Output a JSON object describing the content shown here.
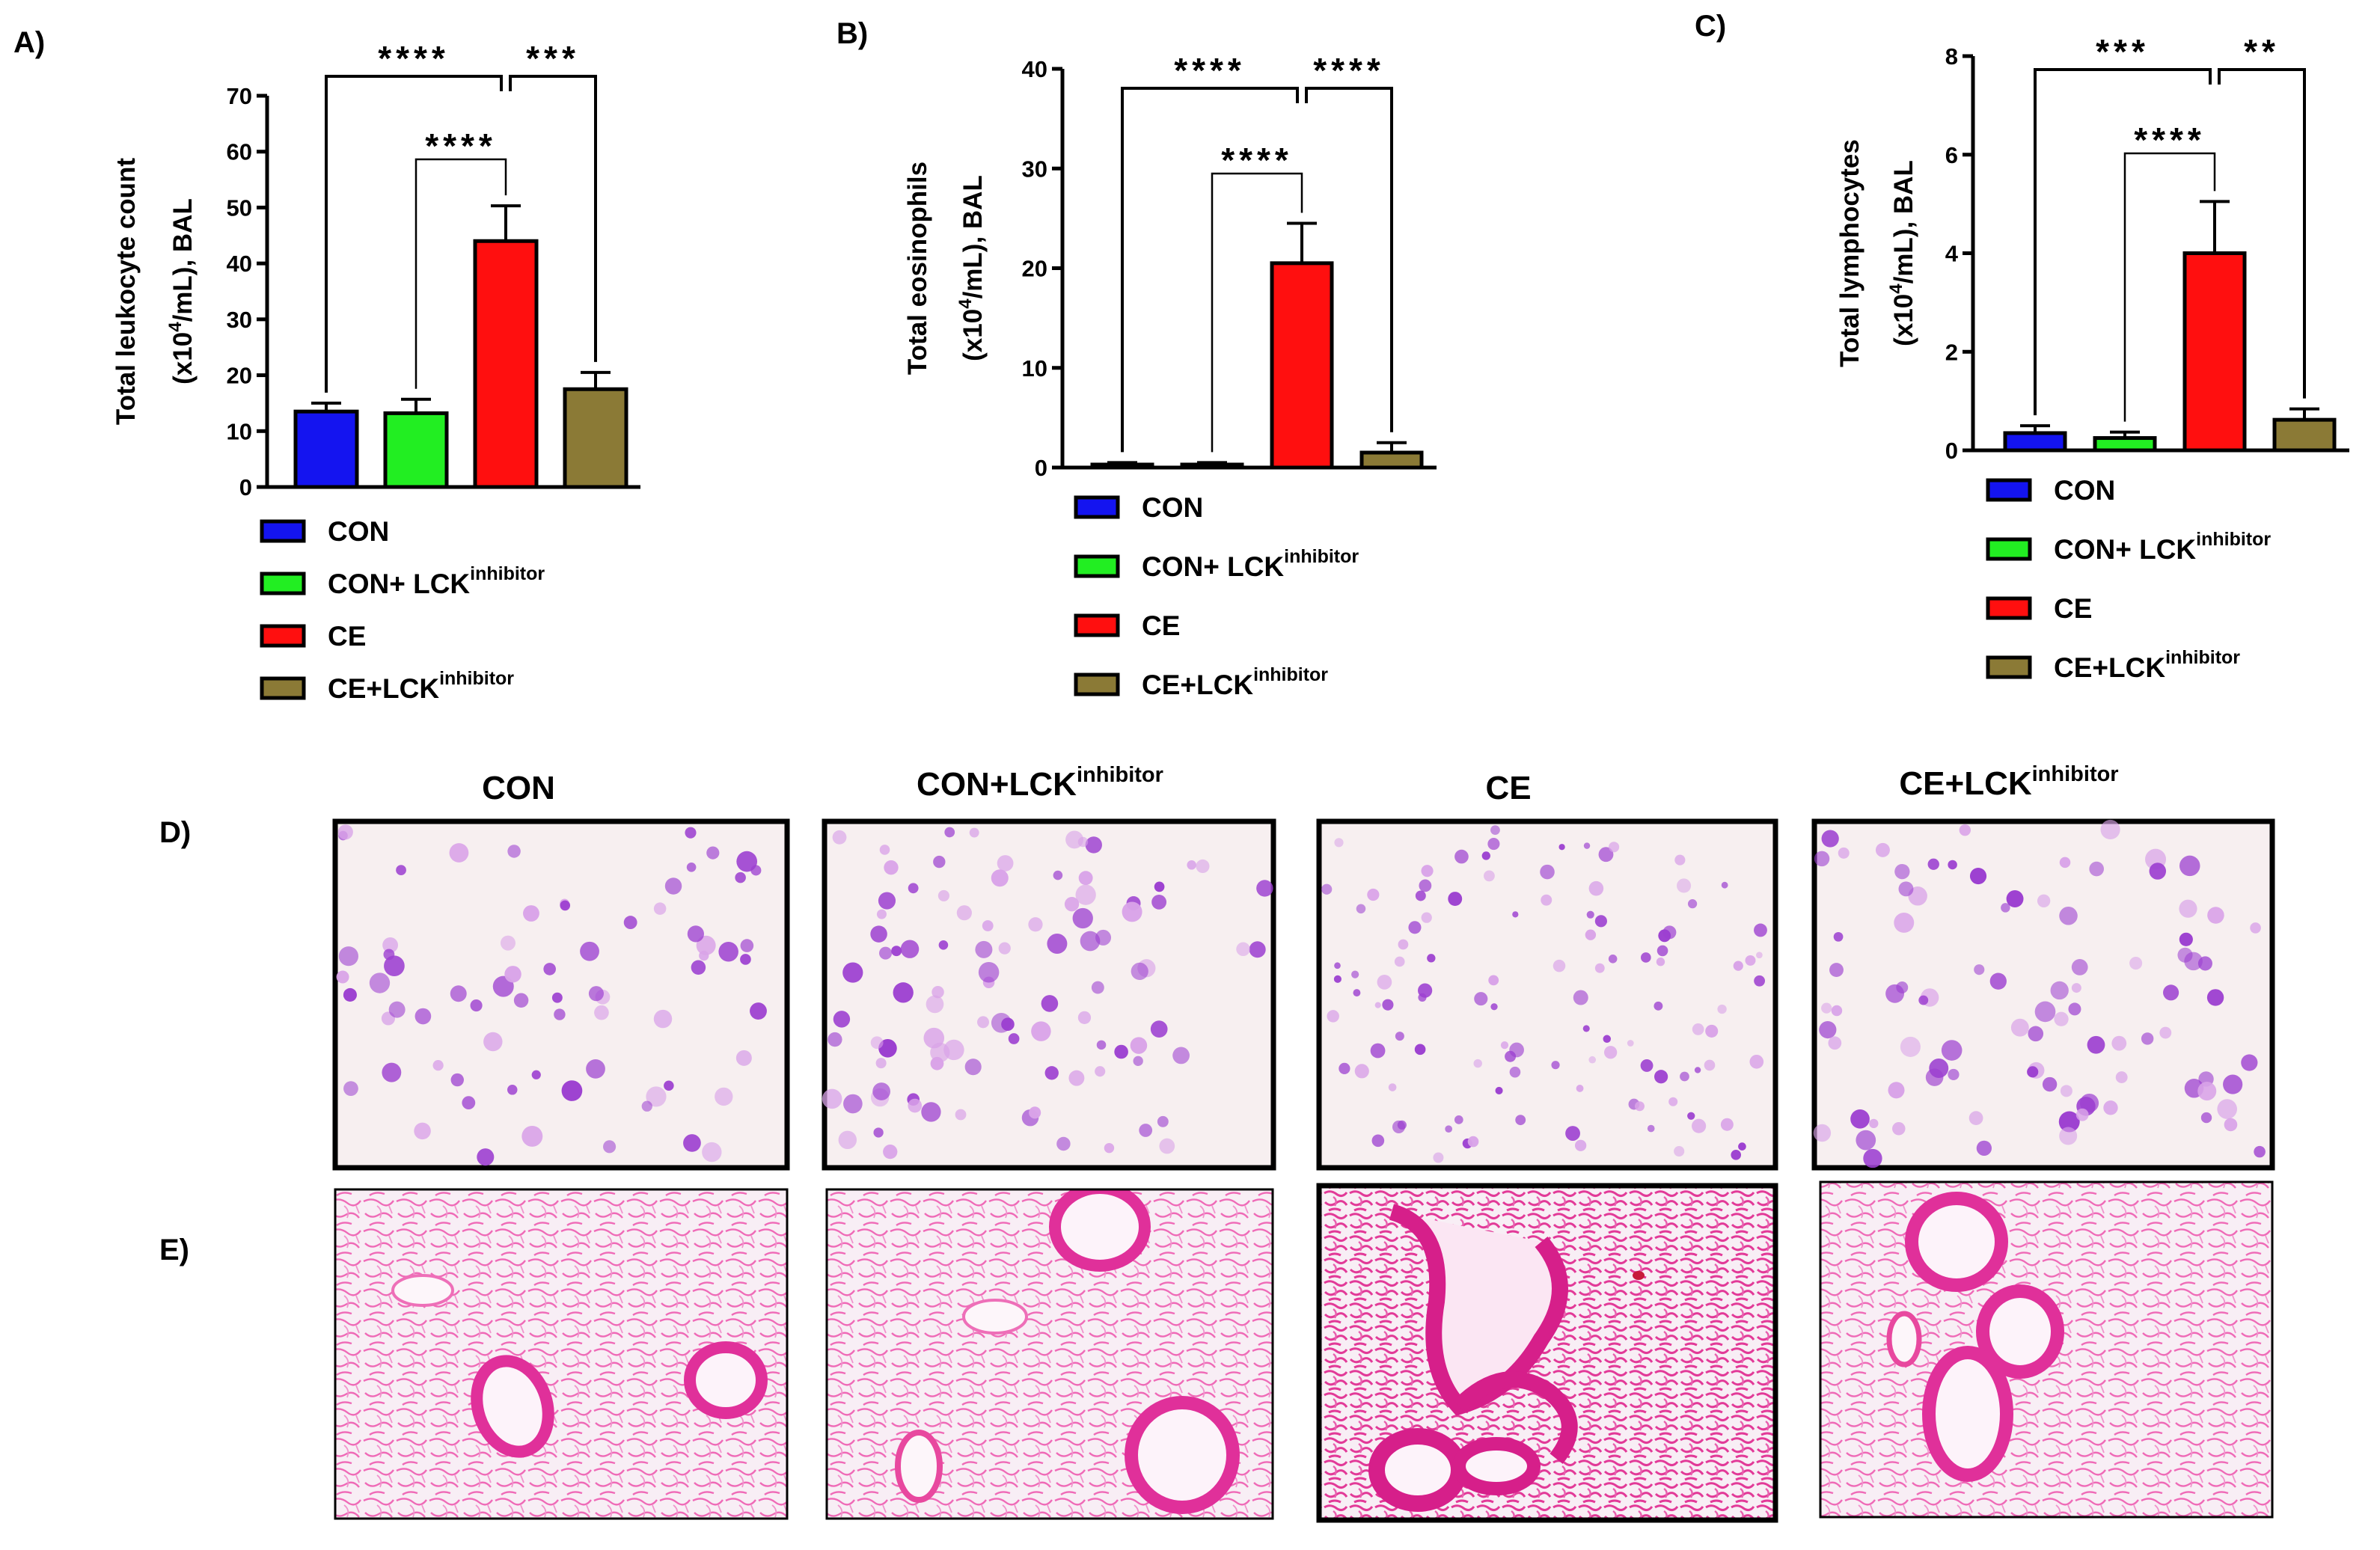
{
  "panels": {
    "A": "A)",
    "B": "B)",
    "C": "C)",
    "D": "D)",
    "E": "E)"
  },
  "legend": [
    {
      "name": "CON",
      "sup": "",
      "color": "#1414f0"
    },
    {
      "name": "CON+ LCK",
      "sup": "inhibitor",
      "color": "#22ee22"
    },
    {
      "name": "CE",
      "sup": "",
      "color": "#ff0f0f"
    },
    {
      "name": "CE+LCK",
      "sup": "inhibitor",
      "color": "#8b7a36"
    }
  ],
  "chart_data": [
    {
      "id": "A",
      "type": "bar",
      "categories": [
        "CON",
        "CON+ LCK inhibitor",
        "CE",
        "CE+LCK inhibitor"
      ],
      "values": [
        13.5,
        13.2,
        44,
        17.5
      ],
      "errors": [
        1.5,
        2.5,
        6.3,
        3
      ],
      "ylabel": [
        "Total leukocyte count",
        "(x10",
        "4",
        "/mL), BAL"
      ],
      "ylim": [
        0,
        70
      ],
      "ticks": [
        0,
        10,
        20,
        30,
        40,
        50,
        60,
        70
      ],
      "tick_labels": [
        "0",
        "10",
        "20",
        "30",
        "40",
        "50",
        "60",
        "70"
      ],
      "brackets": [
        {
          "from": 0,
          "to": 2,
          "level": "outer",
          "label": "****"
        },
        {
          "from": 1,
          "to": 2,
          "level": "inner",
          "label": "****"
        },
        {
          "from": 2,
          "to": 3,
          "level": "outer",
          "label": "***"
        }
      ]
    },
    {
      "id": "B",
      "type": "bar",
      "categories": [
        "CON",
        "CON+ LCK inhibitor",
        "CE",
        "CE+LCK inhibitor"
      ],
      "values": [
        0.3,
        0.3,
        20.5,
        1.5
      ],
      "errors": [
        0.2,
        0.2,
        4,
        1
      ],
      "ylabel": [
        "Total eosinophils",
        "(x10",
        "4",
        "/mL), BAL"
      ],
      "ylim": [
        0,
        40
      ],
      "ticks": [
        0,
        10,
        20,
        30,
        40
      ],
      "tick_labels": [
        "0",
        "10",
        "20",
        "30",
        "40"
      ],
      "brackets": [
        {
          "from": 0,
          "to": 2,
          "level": "outer",
          "label": "****"
        },
        {
          "from": 1,
          "to": 2,
          "level": "inner",
          "label": "****"
        },
        {
          "from": 2,
          "to": 3,
          "level": "outer",
          "label": "****"
        }
      ]
    },
    {
      "id": "C",
      "type": "bar",
      "categories": [
        "CON",
        "CON+ LCK inhibitor",
        "CE",
        "CE+LCK inhibitor"
      ],
      "values": [
        0.35,
        0.25,
        4,
        0.62
      ],
      "errors": [
        0.15,
        0.12,
        1.05,
        0.22
      ],
      "ylabel": [
        "Total lymphocytes",
        "(x10",
        "4",
        "/mL), BAL"
      ],
      "ylim": [
        0,
        8
      ],
      "ticks": [
        0,
        2,
        4,
        6,
        8
      ],
      "tick_labels": [
        "0",
        "2",
        "4",
        "6",
        "8"
      ],
      "brackets": [
        {
          "from": 0,
          "to": 2,
          "level": "outer",
          "label": "***"
        },
        {
          "from": 1,
          "to": 2,
          "level": "inner",
          "label": "****"
        },
        {
          "from": 2,
          "to": 3,
          "level": "outer",
          "label": "**"
        }
      ]
    }
  ],
  "micrographs": {
    "columns": [
      {
        "title": "CON",
        "sup": ""
      },
      {
        "title": "CON+LCK",
        "sup": "inhibitor"
      },
      {
        "title": "CE",
        "sup": ""
      },
      {
        "title": "CE+LCK",
        "sup": "inhibitor"
      }
    ],
    "row_D": {
      "background": "#f7eff0",
      "cell_color": "#9c3fd0"
    },
    "row_E": {
      "background": "#f8eef5",
      "tissue_color": "#e8389e"
    }
  }
}
